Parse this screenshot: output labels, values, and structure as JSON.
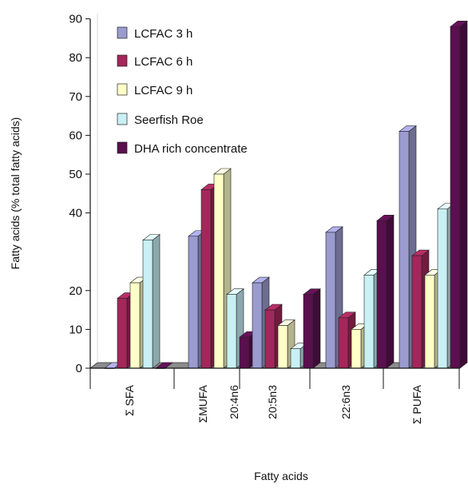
{
  "chart_data": {
    "type": "bar",
    "xlabel": "Fatty acids",
    "ylabel": "Fatty acids (% total fatty acids)",
    "ylim": [
      0,
      90
    ],
    "yticks": [
      "0",
      "10",
      "20",
      "40",
      "50",
      "60",
      "70",
      "80",
      "90"
    ],
    "yticks_values": [
      0,
      10,
      20,
      40,
      50,
      60,
      70,
      80,
      90
    ],
    "categories": [
      "Σ SFA",
      "ΣMUFA",
      "20:4n6",
      "20:5n3",
      "22:6n3",
      "Σ PUFA"
    ],
    "legend_position": "top-left",
    "series": [
      {
        "name": "LCFAC 3 h",
        "color": "#9b9bd0",
        "values": [
          0,
          34,
          null,
          22,
          35,
          61
        ]
      },
      {
        "name": "LCFAC 6 h",
        "color": "#a3275a",
        "values": [
          18,
          46,
          null,
          15,
          13,
          29
        ]
      },
      {
        "name": "LCFAC 9 h",
        "color": "#ffffc8",
        "values": [
          22,
          50,
          null,
          11,
          10,
          24
        ]
      },
      {
        "name": "Seerfish Roe",
        "color": "#c8f0f5",
        "values": [
          33,
          19,
          null,
          5,
          24,
          41
        ]
      },
      {
        "name": "DHA rich concentrate",
        "color": "#5a0f4e",
        "values": [
          0,
          8,
          null,
          19,
          38,
          88
        ]
      }
    ]
  }
}
